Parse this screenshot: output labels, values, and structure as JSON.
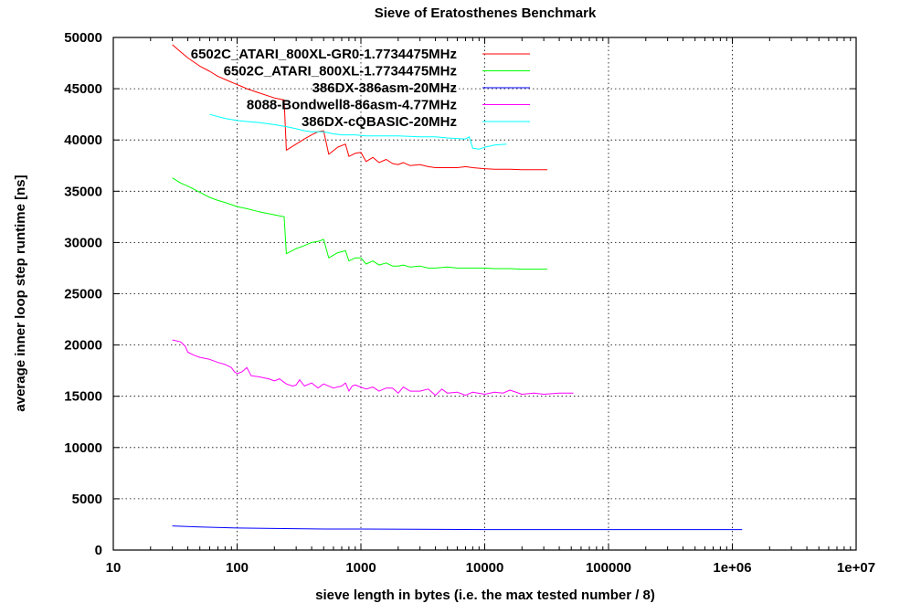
{
  "chart_data": {
    "type": "line",
    "title": "Sieve of Eratosthenes Benchmark",
    "xlabel": "sieve length in bytes (i.e. the max tested number / 8)",
    "ylabel": "average inner loop step runtime [ns]",
    "x_scale": "log",
    "xlim": [
      10,
      10000000
    ],
    "ylim": [
      0,
      50000
    ],
    "x_ticks": [
      10,
      100,
      1000,
      10000,
      100000,
      1000000,
      10000000
    ],
    "x_tick_labels": [
      "10",
      "100",
      "1000",
      "10000",
      "100000",
      "1e+06",
      "1e+07"
    ],
    "y_ticks": [
      0,
      5000,
      10000,
      15000,
      20000,
      25000,
      30000,
      35000,
      40000,
      45000,
      50000
    ],
    "y_tick_labels": [
      "0",
      "5000",
      "10000",
      "15000",
      "20000",
      "25000",
      "30000",
      "35000",
      "40000",
      "45000",
      "50000"
    ],
    "grid": true,
    "legend_position": "top-left",
    "series": [
      {
        "name": "6502C_ATARI_800XL-GR0-1.7734475MHz",
        "color": "#ff0000",
        "points": [
          [
            30,
            49300
          ],
          [
            35,
            48600
          ],
          [
            40,
            48000
          ],
          [
            50,
            47200
          ],
          [
            60,
            46700
          ],
          [
            70,
            46200
          ],
          [
            80,
            45900
          ],
          [
            100,
            45400
          ],
          [
            110,
            45200
          ],
          [
            120,
            45000
          ],
          [
            150,
            44600
          ],
          [
            200,
            44100
          ],
          [
            240,
            43900
          ],
          [
            250,
            39000
          ],
          [
            300,
            39600
          ],
          [
            350,
            40100
          ],
          [
            400,
            40500
          ],
          [
            450,
            40800
          ],
          [
            500,
            40900
          ],
          [
            550,
            38600
          ],
          [
            650,
            39300
          ],
          [
            750,
            39600
          ],
          [
            800,
            38400
          ],
          [
            900,
            38700
          ],
          [
            1000,
            38800
          ],
          [
            1100,
            37900
          ],
          [
            1250,
            38300
          ],
          [
            1400,
            37800
          ],
          [
            1600,
            38100
          ],
          [
            1800,
            37700
          ],
          [
            2000,
            37600
          ],
          [
            2200,
            37800
          ],
          [
            2500,
            37500
          ],
          [
            3000,
            37600
          ],
          [
            3500,
            37400
          ],
          [
            4000,
            37300
          ],
          [
            5000,
            37300
          ],
          [
            6000,
            37300
          ],
          [
            7000,
            37400
          ],
          [
            8000,
            37300
          ],
          [
            9000,
            37250
          ],
          [
            10000,
            37200
          ],
          [
            12000,
            37150
          ],
          [
            16000,
            37150
          ],
          [
            20000,
            37100
          ],
          [
            25000,
            37100
          ],
          [
            32000,
            37100
          ]
        ]
      },
      {
        "name": "6502C_ATARI_800XL-1.7734475MHz",
        "color": "#00ff00",
        "points": [
          [
            30,
            36300
          ],
          [
            35,
            35800
          ],
          [
            40,
            35500
          ],
          [
            50,
            34900
          ],
          [
            60,
            34400
          ],
          [
            70,
            34100
          ],
          [
            80,
            33900
          ],
          [
            100,
            33500
          ],
          [
            120,
            33300
          ],
          [
            150,
            33000
          ],
          [
            200,
            32700
          ],
          [
            240,
            32500
          ],
          [
            250,
            28900
          ],
          [
            300,
            29400
          ],
          [
            350,
            29700
          ],
          [
            400,
            30000
          ],
          [
            450,
            30100
          ],
          [
            500,
            30300
          ],
          [
            550,
            28500
          ],
          [
            650,
            29000
          ],
          [
            750,
            29200
          ],
          [
            800,
            28200
          ],
          [
            900,
            28500
          ],
          [
            1000,
            28500
          ],
          [
            1100,
            27900
          ],
          [
            1250,
            28200
          ],
          [
            1400,
            27800
          ],
          [
            1600,
            28000
          ],
          [
            1800,
            27700
          ],
          [
            2000,
            27700
          ],
          [
            2200,
            27800
          ],
          [
            2500,
            27600
          ],
          [
            3000,
            27700
          ],
          [
            3500,
            27500
          ],
          [
            4000,
            27500
          ],
          [
            5000,
            27600
          ],
          [
            6000,
            27500
          ],
          [
            7000,
            27500
          ],
          [
            8000,
            27500
          ],
          [
            10000,
            27500
          ],
          [
            12000,
            27450
          ],
          [
            16000,
            27450
          ],
          [
            20000,
            27400
          ],
          [
            25000,
            27400
          ],
          [
            32000,
            27400
          ]
        ]
      },
      {
        "name": "386DX-386asm-20MHz",
        "color": "#0000ff",
        "points": [
          [
            30,
            2350
          ],
          [
            50,
            2250
          ],
          [
            100,
            2150
          ],
          [
            200,
            2100
          ],
          [
            500,
            2050
          ],
          [
            1000,
            2050
          ],
          [
            10000,
            2000
          ],
          [
            100000,
            2000
          ],
          [
            1200000,
            2000
          ]
        ]
      },
      {
        "name": "8088-Bondwell8-86asm-4.77MHz",
        "color": "#ff00ff",
        "points": [
          [
            30,
            20500
          ],
          [
            35,
            20300
          ],
          [
            38,
            19900
          ],
          [
            40,
            19300
          ],
          [
            45,
            19000
          ],
          [
            50,
            18800
          ],
          [
            60,
            18600
          ],
          [
            70,
            18300
          ],
          [
            80,
            18100
          ],
          [
            90,
            17800
          ],
          [
            95,
            17400
          ],
          [
            100,
            17200
          ],
          [
            110,
            17400
          ],
          [
            120,
            17800
          ],
          [
            130,
            17000
          ],
          [
            150,
            16900
          ],
          [
            180,
            16700
          ],
          [
            200,
            16500
          ],
          [
            220,
            16700
          ],
          [
            250,
            16200
          ],
          [
            280,
            16000
          ],
          [
            300,
            16100
          ],
          [
            320,
            16600
          ],
          [
            350,
            16000
          ],
          [
            400,
            16300
          ],
          [
            450,
            15800
          ],
          [
            500,
            16200
          ],
          [
            600,
            15800
          ],
          [
            700,
            16000
          ],
          [
            750,
            16300
          ],
          [
            800,
            15500
          ],
          [
            850,
            16000
          ],
          [
            900,
            16100
          ],
          [
            1000,
            15900
          ],
          [
            1100,
            15700
          ],
          [
            1250,
            15900
          ],
          [
            1400,
            15500
          ],
          [
            1600,
            15800
          ],
          [
            1800,
            15800
          ],
          [
            2000,
            15300
          ],
          [
            2200,
            15900
          ],
          [
            2500,
            15500
          ],
          [
            3000,
            15500
          ],
          [
            3500,
            15700
          ],
          [
            4000,
            15100
          ],
          [
            4500,
            15700
          ],
          [
            5000,
            15300
          ],
          [
            6000,
            15400
          ],
          [
            7000,
            15100
          ],
          [
            8000,
            15400
          ],
          [
            10000,
            15200
          ],
          [
            12000,
            15400
          ],
          [
            14000,
            15300
          ],
          [
            16000,
            15600
          ],
          [
            20000,
            15200
          ],
          [
            25000,
            15300
          ],
          [
            30000,
            15200
          ],
          [
            40000,
            15300
          ],
          [
            52000,
            15300
          ]
        ]
      },
      {
        "name": "386DX-cQBASIC-20MHz",
        "color": "#00ffff",
        "points": [
          [
            60,
            42500
          ],
          [
            80,
            42100
          ],
          [
            100,
            41900
          ],
          [
            120,
            41800
          ],
          [
            150,
            41700
          ],
          [
            200,
            41500
          ],
          [
            250,
            41300
          ],
          [
            300,
            41100
          ],
          [
            350,
            40900
          ],
          [
            400,
            40800
          ],
          [
            500,
            40800
          ],
          [
            600,
            40600
          ],
          [
            700,
            40500
          ],
          [
            900,
            40500
          ],
          [
            1100,
            40400
          ],
          [
            1500,
            40400
          ],
          [
            2000,
            40400
          ],
          [
            3000,
            40300
          ],
          [
            4000,
            40300
          ],
          [
            5000,
            40200
          ],
          [
            7000,
            40100
          ],
          [
            7500,
            40300
          ],
          [
            8000,
            39200
          ],
          [
            9000,
            39100
          ],
          [
            10000,
            39300
          ],
          [
            12000,
            39500
          ],
          [
            15000,
            39600
          ]
        ]
      }
    ]
  }
}
